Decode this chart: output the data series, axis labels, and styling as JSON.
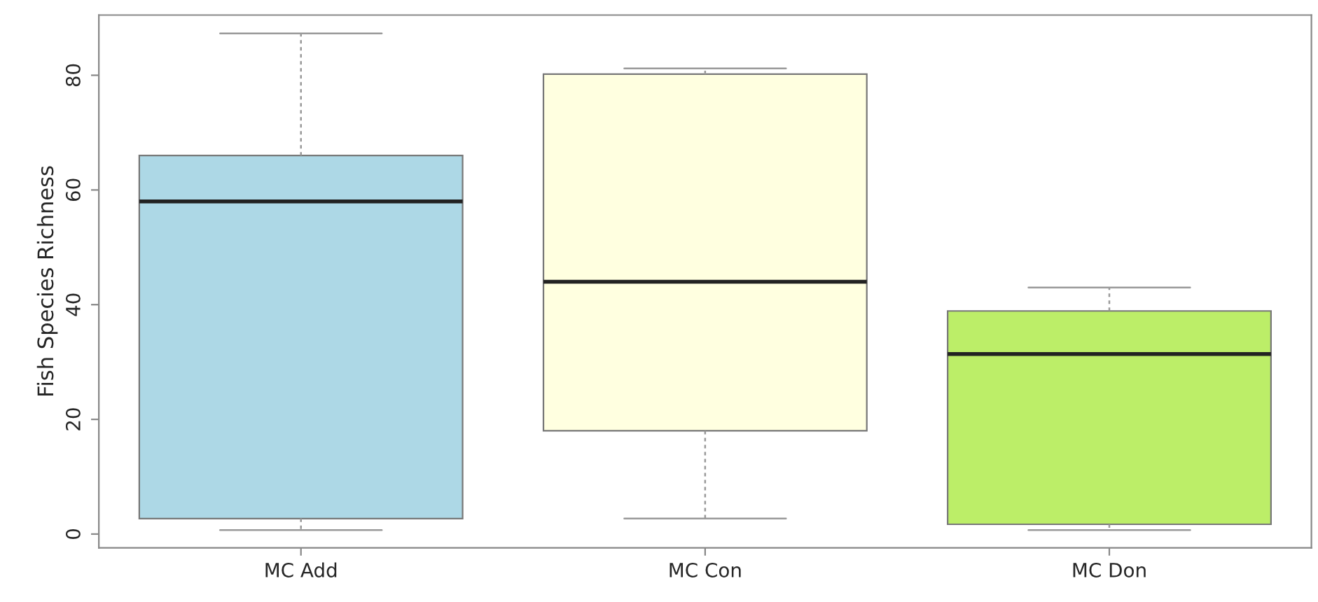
{
  "chart_data": {
    "type": "box",
    "ylabel": "Fish Species Richness",
    "categories": [
      "MC Add",
      "MC Con",
      "MC Don"
    ],
    "colors": [
      "#add8e6",
      "#ffffe0",
      "#bcee68"
    ],
    "boxes": [
      {
        "low": 0.7,
        "q1": 2.7,
        "median": 58,
        "q3": 66,
        "high": 87.3
      },
      {
        "low": 2.7,
        "q1": 18,
        "median": 44,
        "q3": 80.2,
        "high": 81.2
      },
      {
        "low": 0.7,
        "q1": 1.7,
        "median": 31.4,
        "q3": 38.9,
        "high": 43
      }
    ],
    "ylim": [
      -2.4,
      90.5
    ],
    "yticks": [
      0,
      20,
      40,
      60,
      80
    ],
    "grid": false,
    "legend": false
  }
}
